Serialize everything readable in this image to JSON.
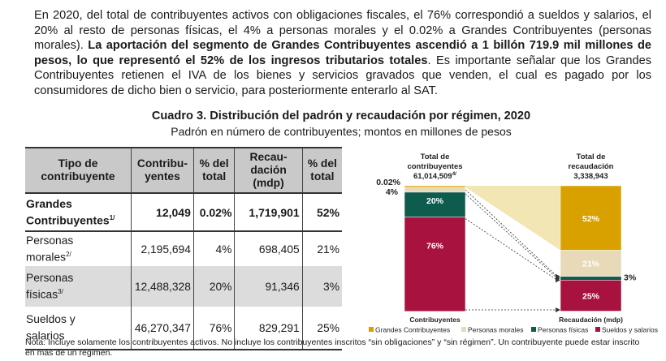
{
  "paragraph": {
    "text1": "En 2020, del total de contribuyentes activos con obligaciones fiscales, el 76% correspondió a sueldos y salarios, el 20% al resto de personas físicas, el 4% a personas morales y el 0.02% a Grandes Contribuyentes (personas morales). ",
    "bold": "La aportación del segmento de Grandes Contribuyentes ascendió a 1 billón 719.9 mil millones de pesos, lo que representó el 52% de los ingresos tributarios totales",
    "text2": ". Es importante señalar que los Grandes Contribuyentes retienen el IVA de los bienes y servicios gravados que venden, el cual es pagado por los consumidores de dicho bien o servicio, para posteriormente enterarlo al SAT."
  },
  "caption": {
    "title": "Cuadro 3. Distribución del padrón y recaudación por régimen, 2020",
    "subtitle": "Padrón en número de contribuyentes; montos en millones de pesos"
  },
  "table": {
    "headers": {
      "tipo1": "Tipo de",
      "tipo2": "contribuyente",
      "contrib1": "Contribu-",
      "contrib2": "yentes",
      "pct1": "% del",
      "pct2": "total",
      "rec1": "Recau-",
      "rec2": "dación",
      "rec3": "(mdp)",
      "pctr1": "% del",
      "pctr2": "total"
    },
    "rows": [
      {
        "name1": "Grandes",
        "name2": "Contribuyentes",
        "sup": "1/",
        "contribuyentes": "12,049",
        "pct": "0.02%",
        "recaudacion": "1,719,901",
        "pct_rec": "52%"
      },
      {
        "name1": "Personas",
        "name2": "morales",
        "sup": "2/",
        "contribuyentes": "2,195,694",
        "pct": "4%",
        "recaudacion": "698,405",
        "pct_rec": "21%"
      },
      {
        "name1": "Personas",
        "name2": "físicas",
        "sup": "3/",
        "contribuyentes": "12,488,328",
        "pct": "20%",
        "recaudacion": "91,346",
        "pct_rec": "3%"
      },
      {
        "name1": "Sueldos y",
        "name2": "salarios",
        "sup": "",
        "contribuyentes": "46,270,347",
        "pct": "76%",
        "recaudacion": "829,291",
        "pct_rec": "25%"
      }
    ]
  },
  "note": "Nota: Incluye solamente los contribuyentes activos. No incluye los contribuyentes inscritos “sin obligaciones” y “sin régimen”. Un contribuyente puede estar inscrito en más de un régimen.",
  "chart_data": {
    "type": "bar",
    "categories": [
      "Contribuyentes",
      "Recaudación (mdp)"
    ],
    "totals": [
      {
        "l1": "Total de",
        "l2": "contribuyentes",
        "l3": "61,014,509",
        "sup": "4/"
      },
      {
        "l1": "Total de",
        "l2": "recaudación",
        "l3": "3,338,943",
        "sup": ""
      }
    ],
    "series": [
      {
        "name": "Grandes Contribuyentes",
        "color": "#d9a100",
        "values": [
          0.02,
          52
        ]
      },
      {
        "name": "Personas morales",
        "color": "#e8d9b8",
        "values": [
          4,
          21
        ]
      },
      {
        "name": "Personas físicas",
        "color": "#0e5c4e",
        "values": [
          20,
          3
        ]
      },
      {
        "name": "Sueldos y salarios",
        "color": "#a8123e",
        "values": [
          76,
          25
        ]
      }
    ],
    "bar_labels": [
      [
        "0.02%",
        "4%",
        "20%",
        "76%"
      ],
      [
        "52%",
        "21%",
        "3%",
        "25%"
      ]
    ],
    "ylim": [
      0,
      100
    ]
  }
}
